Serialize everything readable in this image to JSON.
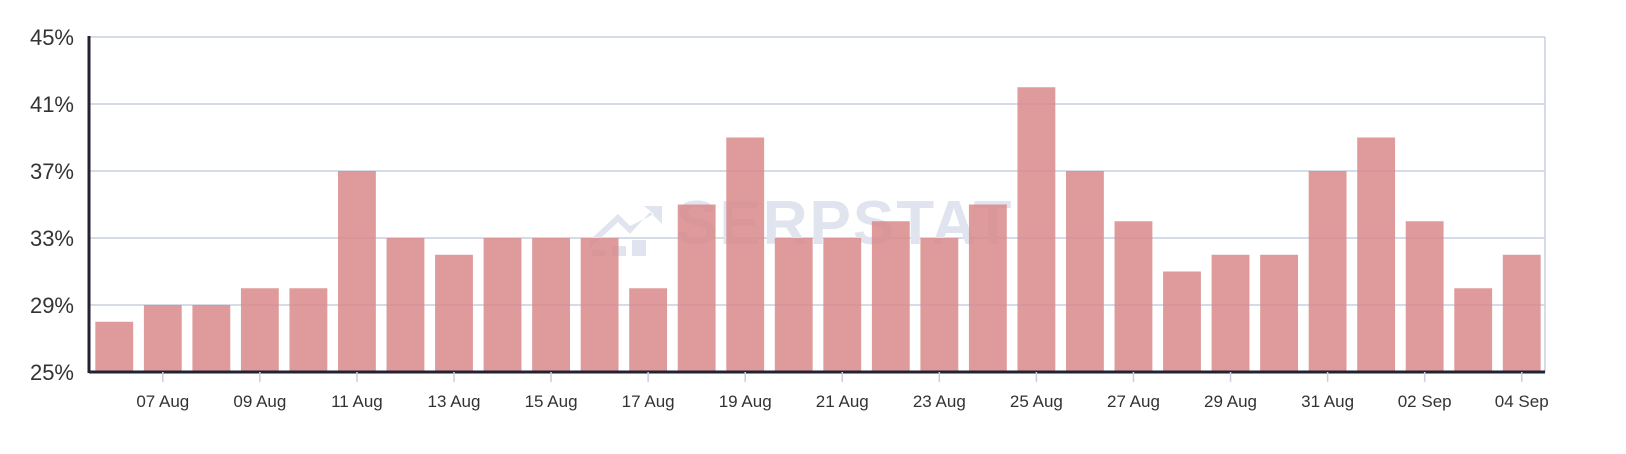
{
  "watermark": {
    "text": "SERPSTAT"
  },
  "colors": {
    "bar": "#d98a8a",
    "grid": "#c9cfe0",
    "axis": "#222233",
    "watermark": "#dfe4ee"
  },
  "chart_data": {
    "type": "bar",
    "title": "",
    "xlabel": "",
    "ylabel": "",
    "ylim": [
      25,
      45
    ],
    "yticks": [
      "25%",
      "29%",
      "33%",
      "37%",
      "41%",
      "45%"
    ],
    "ytick_values": [
      25,
      29,
      33,
      37,
      41,
      45
    ],
    "grid": true,
    "legend": "none",
    "x_tick_labels": [
      "07 Aug",
      "09 Aug",
      "11 Aug",
      "13 Aug",
      "15 Aug",
      "17 Aug",
      "19 Aug",
      "21 Aug",
      "23 Aug",
      "25 Aug",
      "27 Aug",
      "29 Aug",
      "31 Aug",
      "02 Sep",
      "04 Sep"
    ],
    "x_tick_indices": [
      1,
      3,
      5,
      7,
      9,
      11,
      13,
      15,
      17,
      19,
      21,
      23,
      25,
      27,
      29
    ],
    "categories": [
      "06 Aug",
      "07 Aug",
      "08 Aug",
      "09 Aug",
      "10 Aug",
      "11 Aug",
      "12 Aug",
      "13 Aug",
      "14 Aug",
      "15 Aug",
      "16 Aug",
      "17 Aug",
      "18 Aug",
      "19 Aug",
      "20 Aug",
      "21 Aug",
      "22 Aug",
      "23 Aug",
      "24 Aug",
      "25 Aug",
      "26 Aug",
      "27 Aug",
      "28 Aug",
      "29 Aug",
      "30 Aug",
      "31 Aug",
      "01 Sep",
      "02 Sep",
      "03 Sep",
      "04 Sep"
    ],
    "values": [
      28,
      29,
      29,
      30,
      30,
      37,
      33,
      32,
      33,
      33,
      33,
      30,
      35,
      39,
      33,
      33,
      34,
      33,
      35,
      42,
      37,
      34,
      31,
      32,
      32,
      37,
      39,
      34,
      30,
      32
    ]
  }
}
